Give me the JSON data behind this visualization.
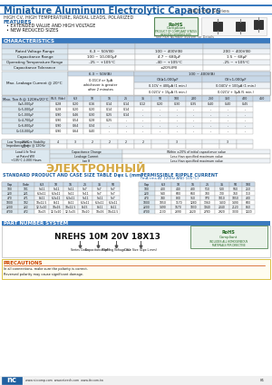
{
  "title": "Miniature Aluminum Electrolytic Capacitors",
  "series": "NRE-HS Series",
  "subtitle": "HIGH CV, HIGH TEMPERATURE, RADIAL LEADS, POLARIZED",
  "features": [
    "EXTENDED VALUE AND HIGH VOLTAGE",
    "NEW REDUCED SIZES"
  ],
  "see_part": "*See Part Number System for Details",
  "chars_title": "CHARACTERISTICS",
  "char_rows": [
    [
      "Rated Voltage Range",
      "6.3 ~ 50V(B)",
      "100 ~ 400V(B)",
      "200 ~ 400V(B)"
    ],
    [
      "Capacitance Range",
      "100 ~ 10,000μF",
      "4.7 ~ 680μF",
      "1.5 ~ 68μF"
    ],
    [
      "Operating Temperature Range",
      "-25 ~ +105°C",
      "-40 ~ +105°C",
      "-25 ~ +105°C"
    ],
    [
      "Capacitance Tolerance",
      "",
      "±20%(M)",
      ""
    ]
  ],
  "leakage_header": "Max. Leakage Current @ 20°C",
  "leakage_low": "6.3 ~ 50V(B)",
  "leakage_high": "100 ~ 400V(B)",
  "leakage_formula_low_lines": [
    "0.01CV or 3μA",
    "whichever is greater",
    "after 2 minutes"
  ],
  "leakage_cv1": "CV≥1,000μF",
  "leakage_cv2": "CV<1,000μF",
  "leakage_cv1_vals": [
    "0.1CV + 400μA (1 min.)",
    "0.02CV + 15μA (5 min.)"
  ],
  "leakage_cv2_vals": [
    "0.04CV + 100μA (1 min.)",
    "0.02CV + 3μA (5 min.)"
  ],
  "tan_header": "Max. Tan δ @ 120Hz/20°C",
  "tan_voltages": [
    "W.V. (Vdc)",
    "6.3",
    "10",
    "16",
    "25",
    "35",
    "50",
    "100",
    "200",
    "250",
    "350",
    "400",
    "450"
  ],
  "tan_rows": [
    [
      "C≤5,000μF",
      "0.28",
      "0.20",
      "0.16",
      "0.14",
      "0.14",
      "0.12",
      "0.20",
      "0.30",
      "0.35",
      "0.40",
      "0.40",
      "0.45"
    ],
    [
      "C>5,000μF",
      "0.28",
      "0.20",
      "0.20",
      "0.14",
      "0.14",
      "-",
      "-",
      "-",
      "-",
      "-",
      "-",
      "-"
    ],
    [
      "C>1,000μF",
      "0.90",
      "0.46",
      "0.30",
      "0.25",
      "0.14",
      "-",
      "-",
      "-",
      "-",
      "-",
      "-",
      "-"
    ],
    [
      "C>4,700μF",
      "0.90",
      "0.54",
      "0.28",
      "0.25",
      "-",
      "-",
      "-",
      "-",
      "-",
      "-",
      "-",
      "-"
    ],
    [
      "C>6,800μF",
      "0.90",
      "0.64",
      "0.34",
      "-",
      "-",
      "-",
      "-",
      "-",
      "-",
      "-",
      "-",
      "-"
    ],
    [
      "C>10,000μF",
      "0.90",
      "0.64",
      "0.40",
      "-",
      "-",
      "-",
      "-",
      "-",
      "-",
      "-",
      "-",
      "-"
    ]
  ],
  "low_temp_rows": [
    [
      "-25°C",
      "4",
      "3",
      "2",
      "2",
      "2",
      "2",
      "",
      "3",
      "",
      "",
      "3",
      ""
    ],
    [
      "-40°C",
      "",
      "",
      "",
      "",
      "",
      "",
      "",
      "",
      "",
      "",
      "",
      ""
    ]
  ],
  "life_test_vals": [
    "Within ±20% of initial capacitance value",
    "Less than specified maximum value",
    "Less than specified maximum value"
  ],
  "life_test_labels": [
    "Capacitance Change",
    "Leakage Current",
    "tan δ"
  ],
  "std_table_title": "STANDARD PRODUCT AND CASE SIZE TABLE Dφx L (mm)",
  "ripple_table_title": "PERMISSIBLE RIPPLE CURRENT",
  "ripple_table_subtitle": "(mA rms AT 120Hz AND 105°C)",
  "std_data": [
    [
      "100",
      "101",
      "5x11",
      "5x11",
      "5x11",
      "5x7",
      "5x7",
      "5x7",
      "-",
      "-",
      "-",
      "-",
      "-",
      "-",
      "-"
    ],
    [
      "220",
      "221",
      "6.3x11",
      "6.3x11",
      "5x11",
      "5x11",
      "5x7",
      "5x7",
      "-",
      "-",
      "-",
      "-",
      "-",
      "-",
      "-"
    ],
    [
      "470",
      "471",
      "8x11",
      "6.3x11",
      "6.3x11",
      "5x11",
      "5x11",
      "5x7",
      "-",
      "-",
      "-",
      "-",
      "-",
      "-",
      "-"
    ],
    [
      "1000",
      "102",
      "10x12.5",
      "8x11",
      "8x11",
      "6.3x11",
      "6.3x11",
      "6.3x11",
      "6.3x11",
      "-",
      "-",
      "-",
      "-",
      "-",
      "-"
    ],
    [
      "2200",
      "222",
      "12.5x20",
      "10x16",
      "10x12.5",
      "8x15",
      "8x11",
      "8x11",
      "8x15",
      "-",
      "-",
      "-",
      "-",
      "-",
      "-"
    ],
    [
      "4700",
      "472",
      "16x25",
      "12.5x20",
      "12.5x15",
      "10x20",
      "10x16",
      "10x12.5",
      "-",
      "-",
      "-",
      "-",
      "-",
      "-",
      "-"
    ]
  ],
  "ripple_data": [
    [
      "100",
      "101",
      "400",
      "440",
      "480",
      "510",
      "530",
      "560",
      "250",
      "190",
      "180",
      "170",
      "160",
      "150",
      "140"
    ],
    [
      "220",
      "221",
      "540",
      "600",
      "660",
      "700",
      "730",
      "760",
      "310",
      "240",
      "220",
      "210",
      "200",
      "190",
      "180"
    ],
    [
      "470",
      "471",
      "740",
      "830",
      "910",
      "970",
      "1010",
      "1050",
      "430",
      "330",
      "310",
      "290",
      "280",
      "260",
      "250"
    ],
    [
      "1000",
      "102",
      "1050",
      "1170",
      "1280",
      "1360",
      "1430",
      "1490",
      "600",
      "460",
      "430",
      "410",
      "390",
      "370",
      "350"
    ],
    [
      "2200",
      "222",
      "1490",
      "1670",
      "1830",
      "1940",
      "2040",
      "2120",
      "860",
      "660",
      "610",
      "580",
      "560",
      "530",
      "500"
    ],
    [
      "4700",
      "472",
      "2130",
      "2390",
      "2620",
      "2780",
      "2920",
      "3030",
      "1220",
      "940",
      "870",
      "830",
      "800",
      "750",
      "710"
    ]
  ],
  "part_number_title": "PART NUMBER SYSTEM",
  "part_example": "NREHS 10M 20V 18X13",
  "part_labels": [
    "Series Code",
    "Capacitance (pF)",
    "Working Voltage (V)",
    "Case Size (Dφx L mm)"
  ],
  "part_arrows": [
    88,
    108,
    128,
    155
  ],
  "bottom_text": "PRECAUTIONS",
  "precaution_lines": [
    "In all connections, make sure the polarity is correct.",
    "Reversed polarity may cause significant damage."
  ],
  "bg_color": "#ffffff",
  "header_blue": "#3a7abf",
  "table_header_bg": "#c8d8e8",
  "table_row_bg1": "#eef2f6",
  "table_row_bg2": "#ffffff",
  "label_bg": "#dce8f0",
  "border_color": "#aaaaaa",
  "text_color": "#111111",
  "blue_text": "#2060a0",
  "watermark_text": "ЭЛЕКТРОННЫЙ",
  "bottom_url": "www.niccomp.com  www.nteech.com  www.ttr.com.tw"
}
